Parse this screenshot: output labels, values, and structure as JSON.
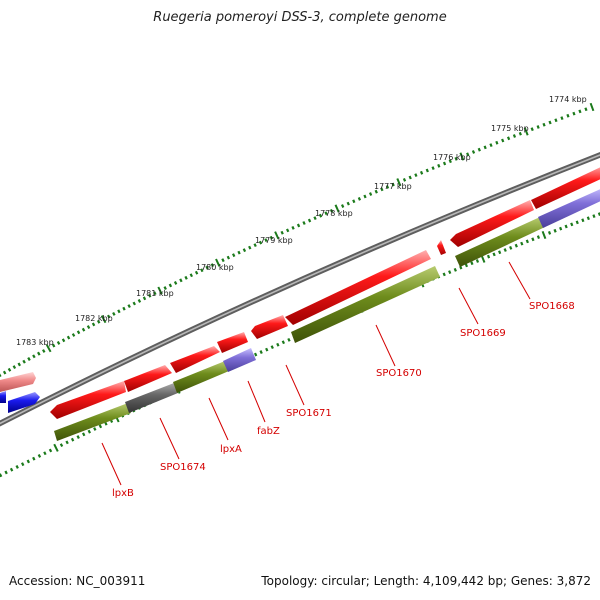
{
  "title": "Ruegeria pomeroyi DSS-3, complete genome",
  "footer": {
    "accession": "Accession: NC_003911",
    "summary": "Topology: circular; Length: 4,109,442 bp; Genes: 3,872"
  },
  "scale": {
    "labels": [
      "1774 kbp",
      "1775 kbp",
      "1776 kbp",
      "1777 kbp",
      "1778 kbp",
      "1779 kbp",
      "1780 kbp",
      "1781 kbp",
      "1782 kbp",
      "1783 kbp"
    ],
    "tick_color": "#1b7a1b"
  },
  "genes": {
    "labels": [
      "SPO1668",
      "SPO1669",
      "SPO1670",
      "SPO1671",
      "fabZ",
      "lpxA",
      "SPO1674",
      "lpxB"
    ],
    "label_color": "#d40000"
  },
  "colors": {
    "backbone": "#8c8c8c",
    "cds_forward": "#ff0000",
    "cds_forward_light": "#f08080",
    "cds_blue": "#1a1aee",
    "feature_green": "#6e8c1c",
    "feature_purple": "#7f6fd8",
    "feature_grey": "#666666"
  }
}
